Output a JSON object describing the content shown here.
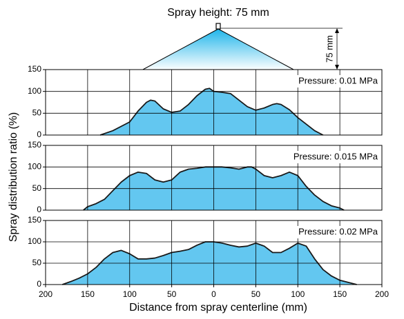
{
  "chart_data": [
    {
      "type": "area",
      "title": "Spray height: 75 mm",
      "diagram_label": "75 mm",
      "annotation": "Pressure: 0.01 MPa",
      "color": "#63c7f0",
      "x": [
        -135,
        -120,
        -100,
        -90,
        -80,
        -75,
        -70,
        -60,
        -50,
        -40,
        -30,
        -20,
        -10,
        -5,
        0,
        10,
        20,
        30,
        40,
        50,
        60,
        70,
        75,
        80,
        90,
        100,
        110,
        120,
        130
      ],
      "values": [
        0,
        10,
        30,
        55,
        75,
        80,
        78,
        60,
        52,
        55,
        70,
        90,
        105,
        107,
        100,
        98,
        95,
        80,
        65,
        57,
        62,
        70,
        72,
        70,
        58,
        40,
        25,
        10,
        0
      ],
      "ylim": [
        0,
        150
      ],
      "yticks": [
        0,
        50,
        100,
        150
      ],
      "grid": true
    },
    {
      "type": "area",
      "y_label": "Spray distribution ratio (%)",
      "annotation": "Pressure: 0.015 MPa",
      "color": "#63c7f0",
      "x": [
        -155,
        -150,
        -140,
        -130,
        -120,
        -110,
        -100,
        -90,
        -80,
        -70,
        -60,
        -50,
        -40,
        -30,
        -20,
        -10,
        0,
        10,
        20,
        30,
        40,
        45,
        50,
        60,
        70,
        80,
        90,
        100,
        110,
        120,
        130,
        140,
        150,
        155
      ],
      "values": [
        0,
        8,
        15,
        25,
        45,
        65,
        80,
        88,
        85,
        70,
        65,
        70,
        88,
        95,
        97,
        100,
        100,
        100,
        98,
        95,
        100,
        100,
        95,
        80,
        75,
        80,
        88,
        80,
        55,
        35,
        20,
        10,
        5,
        0
      ],
      "ylim": [
        0,
        150
      ],
      "yticks": [
        0,
        50,
        100,
        150
      ],
      "grid": true
    },
    {
      "type": "area",
      "x_label": "Distance from spray centerline (mm)",
      "annotation": "Pressure: 0.02 MPa",
      "color": "#63c7f0",
      "x": [
        -180,
        -170,
        -160,
        -150,
        -140,
        -130,
        -120,
        -110,
        -100,
        -90,
        -80,
        -70,
        -60,
        -50,
        -40,
        -30,
        -20,
        -10,
        0,
        10,
        20,
        30,
        40,
        50,
        60,
        70,
        80,
        90,
        100,
        110,
        120,
        130,
        140,
        150,
        160,
        170
      ],
      "values": [
        0,
        7,
        15,
        25,
        40,
        60,
        75,
        80,
        72,
        60,
        60,
        62,
        68,
        75,
        78,
        82,
        92,
        100,
        100,
        97,
        92,
        88,
        90,
        97,
        90,
        75,
        75,
        85,
        97,
        90,
        60,
        35,
        20,
        10,
        5,
        0
      ],
      "ylim": [
        0,
        150
      ],
      "yticks": [
        0,
        50,
        100,
        150
      ],
      "grid": true,
      "xlim": [
        -200,
        200
      ],
      "xticks": [
        {
          "value": -200,
          "label": "200"
        },
        {
          "value": -150,
          "label": "150"
        },
        {
          "value": -100,
          "label": "100"
        },
        {
          "value": -50,
          "label": "50"
        },
        0,
        50,
        100,
        150,
        200
      ]
    }
  ]
}
